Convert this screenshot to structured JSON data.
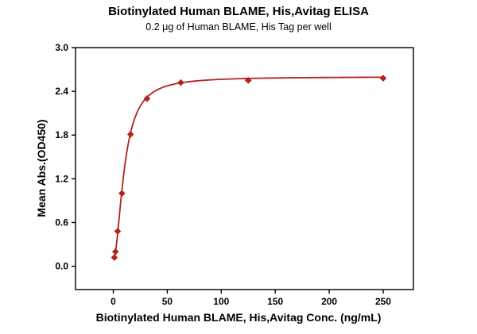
{
  "page": {
    "background": "#ffffff"
  },
  "chart_data": {
    "type": "scatter",
    "title": "Biotinylated Human BLAME, His,Avitag ELISA",
    "subtitle": "0.2 μg of Human BLAME, His Tag per well",
    "xlabel": "Biotinylated Human BLAME, His,Avitag Conc. (ng/mL)",
    "ylabel": "Mean Abs.(OD450)",
    "x": [
      1,
      2,
      4,
      8,
      16,
      31.25,
      62.5,
      125,
      250
    ],
    "y": [
      0.12,
      0.2,
      0.48,
      1.0,
      1.81,
      2.3,
      2.52,
      2.55,
      2.58
    ],
    "xlim": [
      -35,
      278
    ],
    "ylim": [
      -0.32,
      3.0
    ],
    "x_ticks": [
      0,
      50,
      100,
      150,
      200,
      250
    ],
    "y_ticks": [
      0.0,
      0.6,
      1.2,
      1.8,
      2.4,
      3.0
    ],
    "marker": "diamond",
    "series_color": "#b2231b",
    "axis_color": "#000000",
    "grid": false,
    "legend": false,
    "fit": {
      "model": "4pl-sigmoidal",
      "bottom": 0.08,
      "top": 2.6,
      "ec50": 10.3,
      "hill": 1.87,
      "curve_x_start": 0.9,
      "curve_x_end": 250
    }
  }
}
